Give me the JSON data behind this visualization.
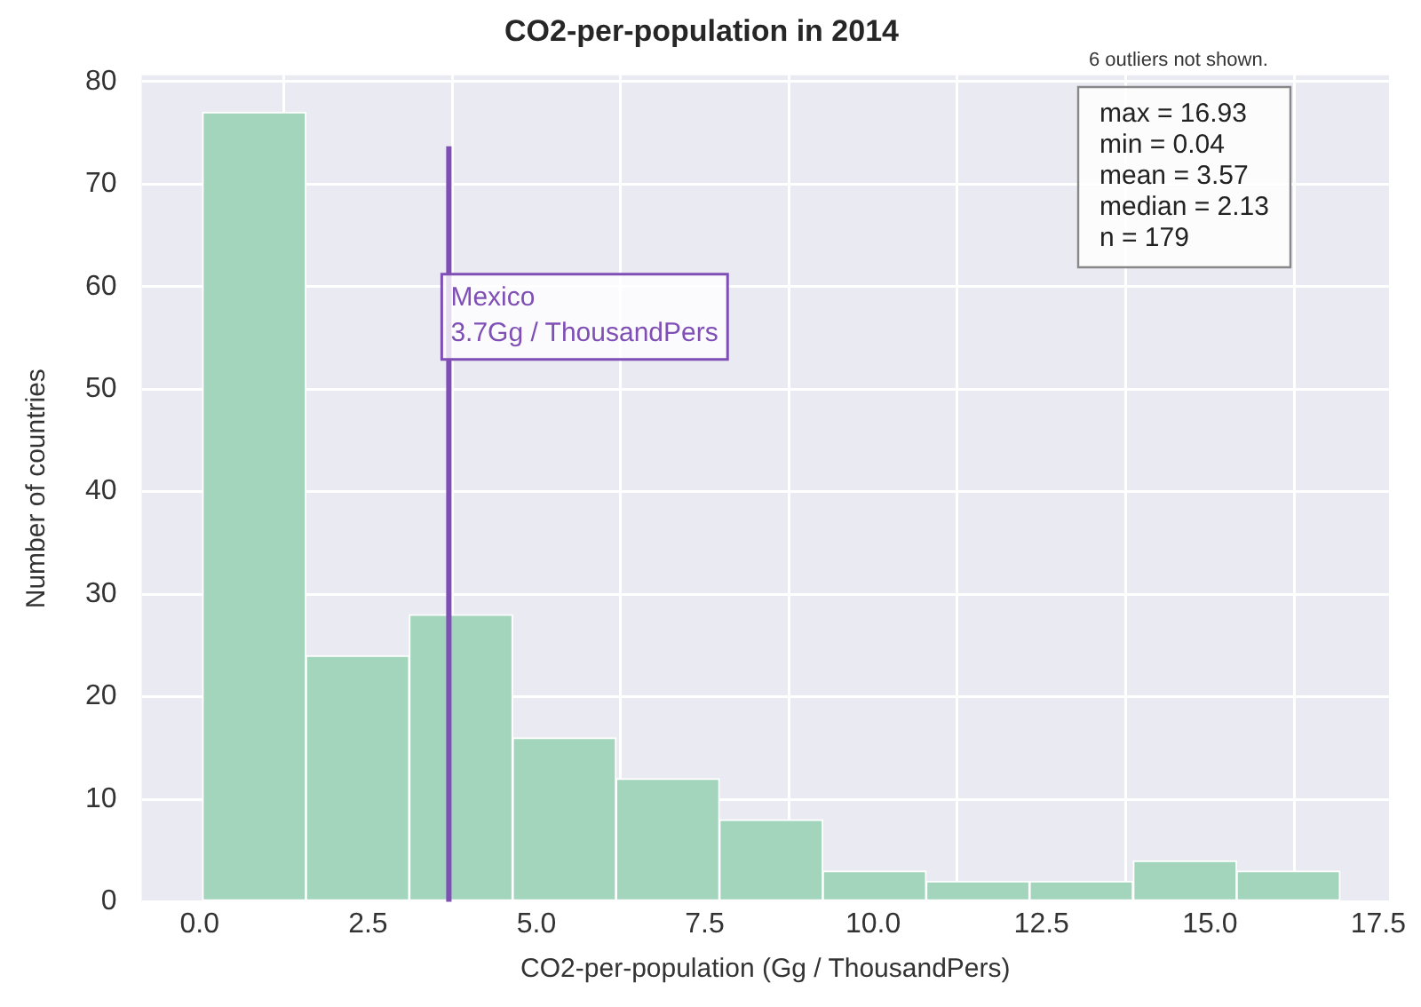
{
  "chart_data": {
    "type": "histogram",
    "title": "CO2-per-population in 2014",
    "xlabel": "CO2-per-population (Gg / ThousandPers)",
    "ylabel": "Number of countries",
    "bins": [
      0.04,
      1.58,
      3.11,
      4.65,
      6.18,
      7.72,
      9.25,
      10.79,
      12.32,
      13.86,
      15.4,
      16.93
    ],
    "values": [
      77,
      24,
      28,
      16,
      12,
      8,
      3,
      2,
      2,
      4,
      3
    ],
    "color": "#a3d5bd",
    "xlim": [
      -0.86,
      17.66
    ],
    "xticks": [
      {
        "value": 0,
        "label": "0.0"
      },
      {
        "value": 2.5,
        "label": "2.5"
      },
      {
        "value": 5,
        "label": "5.0"
      },
      {
        "value": 7.5,
        "label": "7.5"
      },
      {
        "value": 10,
        "label": "10.0"
      },
      {
        "value": 12.5,
        "label": "12.5"
      },
      {
        "value": 15,
        "label": "15.0"
      },
      {
        "value": 17.5,
        "label": "17.5"
      }
    ],
    "ylim": [
      0,
      80.6
    ],
    "yticks": [
      0,
      10,
      20,
      30,
      40,
      50,
      60,
      70,
      80
    ],
    "grid": true,
    "ref_lines": [
      {
        "axis": "x",
        "value": 3.7,
        "label": "Mexico\n3.7Gg / ThousandPers",
        "color": "#7f4fb5"
      }
    ],
    "annotations": [
      "6 outliers not shown.",
      "max = 16.93\nmin = 0.04\nmean = 3.57\nmedian = 2.13\nn = 179"
    ]
  }
}
